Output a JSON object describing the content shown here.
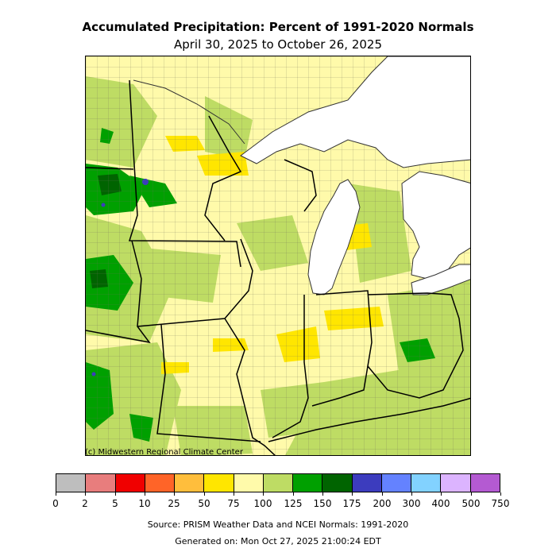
{
  "title": "Accumulated Precipitation: Percent of 1991-2020 Normals",
  "subtitle": "April 30, 2025 to October 26, 2025",
  "credit": "(c) Midwestern Regional Climate Center",
  "source": "Source: PRISM Weather Data and NCEI Normals: 1991-2020",
  "generated": "Generated on: Mon Oct 27, 2025 21:00:24 EDT",
  "map": {
    "region": "Midwest United States",
    "lake_color": "#ffffff",
    "base_color": "#fffaaa"
  },
  "legend": {
    "ticks": [
      "0",
      "2",
      "5",
      "10",
      "25",
      "50",
      "75",
      "100",
      "125",
      "150",
      "175",
      "200",
      "300",
      "400",
      "500",
      "750"
    ],
    "colors": [
      "#bebebe",
      "#e87d7d",
      "#f00000",
      "#ff6428",
      "#ffbe3c",
      "#ffe600",
      "#fffaaa",
      "#bedc64",
      "#00a000",
      "#006400",
      "#3c3cbe",
      "#6482ff",
      "#82d2ff",
      "#dcb4ff",
      "#b45ad2"
    ]
  }
}
